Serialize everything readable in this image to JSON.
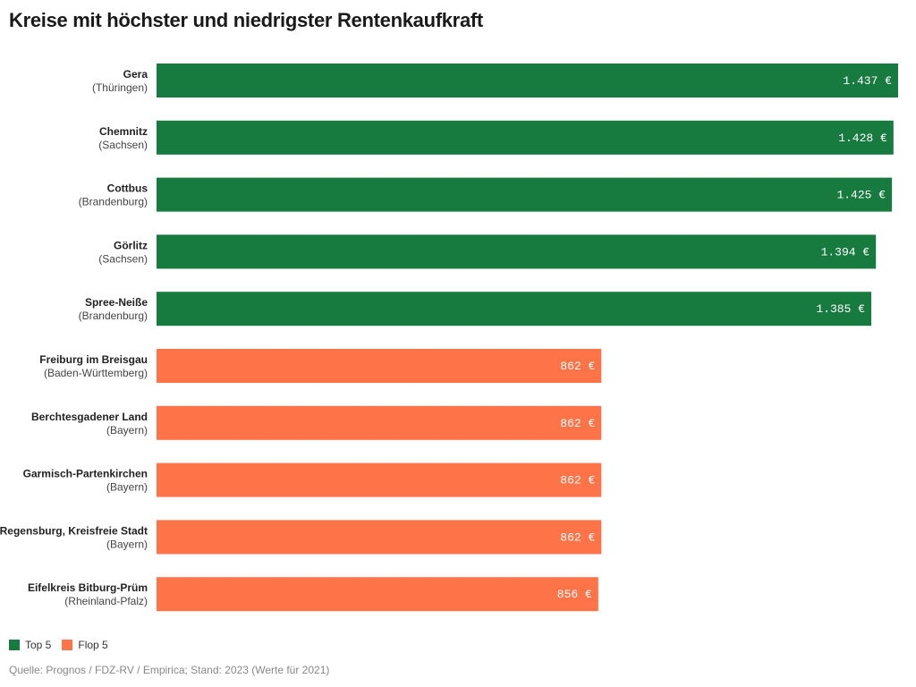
{
  "chart_data": {
    "type": "bar",
    "orientation": "horizontal",
    "title": "Kreise mit höchster und niedrigster Rentenkaufkraft",
    "categories": [
      {
        "name": "Gera",
        "state": "(Thüringen)",
        "group": "Top 5"
      },
      {
        "name": "Chemnitz",
        "state": "(Sachsen)",
        "group": "Top 5"
      },
      {
        "name": "Cottbus",
        "state": "(Brandenburg)",
        "group": "Top 5"
      },
      {
        "name": "Görlitz",
        "state": "(Sachsen)",
        "group": "Top 5"
      },
      {
        "name": "Spree-Neiße",
        "state": "(Brandenburg)",
        "group": "Top 5"
      },
      {
        "name": "Freiburg im Breisgau",
        "state": "(Baden-Württemberg)",
        "group": "Flop 5"
      },
      {
        "name": "Berchtesgadener Land",
        "state": "(Bayern)",
        "group": "Flop 5"
      },
      {
        "name": "Garmisch-Partenkirchen",
        "state": "(Bayern)",
        "group": "Flop 5"
      },
      {
        "name": "Regensburg, Kreisfreie Stadt",
        "state": "(Bayern)",
        "group": "Flop 5"
      },
      {
        "name": "Eifelkreis Bitburg-Prüm",
        "state": "(Rheinland-Pfalz)",
        "group": "Flop 5"
      }
    ],
    "values": [
      1437,
      1428,
      1425,
      1394,
      1385,
      862,
      862,
      862,
      862,
      856
    ],
    "value_labels": [
      "1.437 €",
      "1.428 €",
      "1.425 €",
      "1.394 €",
      "1.385 €",
      "862 €",
      "862 €",
      "862 €",
      "862 €",
      "856 €"
    ],
    "xlim": [
      0,
      1437
    ],
    "grid": false,
    "legend": {
      "placement": "bottom-left",
      "entries": [
        {
          "label": "Top 5",
          "color": "#177a3e"
        },
        {
          "label": "Flop 5",
          "color": "#ff7348"
        }
      ]
    },
    "source": "Quelle: Prognos / FDZ-RV / Empirica; Stand: 2023 (Werte für 2021)"
  }
}
